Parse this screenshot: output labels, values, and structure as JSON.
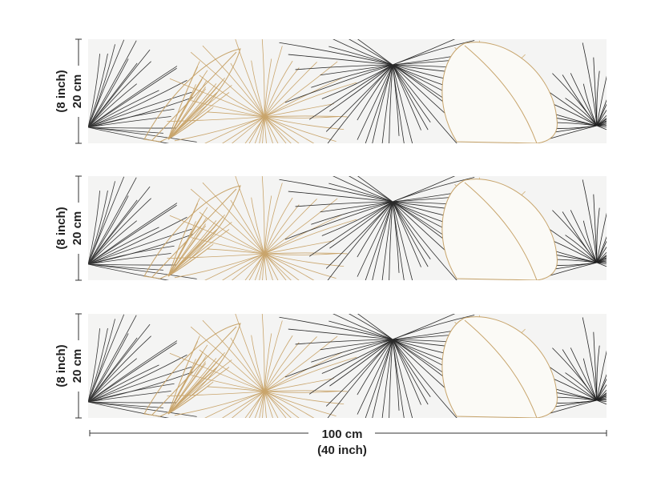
{
  "strips": [
    {
      "height_cm": "20 cm",
      "height_inch": "(8 inch)"
    },
    {
      "height_cm": "20 cm",
      "height_inch": "(8 inch)"
    },
    {
      "height_cm": "20 cm",
      "height_inch": "(8 inch)"
    }
  ],
  "width": {
    "cm": "100 cm",
    "inch": "(40 inch)"
  }
}
